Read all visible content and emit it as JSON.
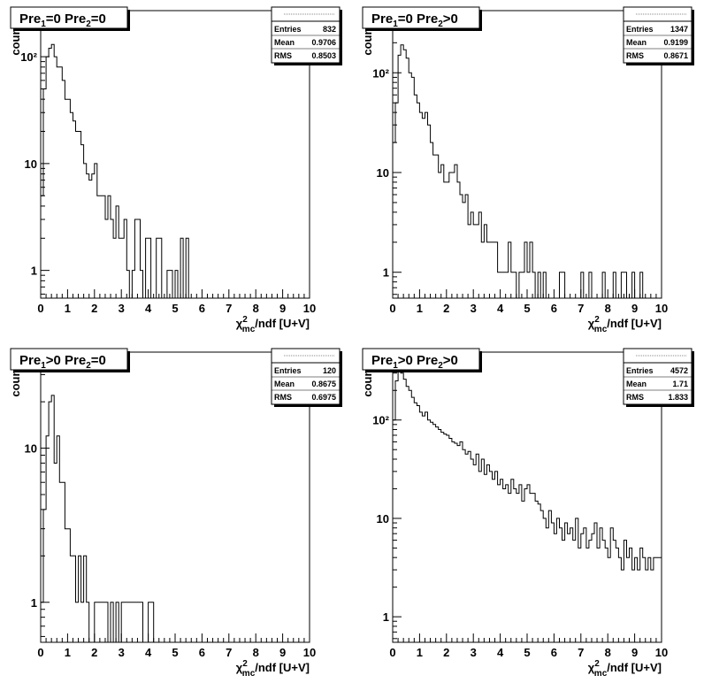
{
  "chart_data": [
    {
      "type": "histogram",
      "title": "Pre1=0  Pre2=0",
      "stats": {
        "Entries": "832",
        "Mean": "0.9706",
        "RMS": "0.8503"
      },
      "xlabel": "χ2mc/ndf [U+V]",
      "ylabel": "counts",
      "xlim": [
        0,
        10
      ],
      "ylog": true,
      "ylim": [
        0.55,
        270
      ],
      "xticks": [
        "0",
        "1",
        "2",
        "3",
        "4",
        "5",
        "6",
        "7",
        "8",
        "9",
        "10"
      ],
      "yticks": [
        {
          "v": 1,
          "label": "1"
        },
        {
          "v": 10,
          "label": "10"
        },
        {
          "v": 100,
          "label": "10²"
        }
      ],
      "bin_width": 0.1,
      "values": [
        5,
        50,
        100,
        120,
        130,
        100,
        80,
        80,
        60,
        40,
        40,
        30,
        25,
        20,
        20,
        15,
        10,
        8,
        7,
        8,
        10,
        5,
        5,
        5,
        3,
        5,
        3,
        2,
        4,
        2,
        2,
        3,
        1,
        0,
        1,
        3,
        3,
        1,
        0,
        2,
        2,
        0,
        0,
        2,
        2,
        0,
        0,
        1,
        1,
        0,
        1,
        0,
        2,
        0,
        2,
        0,
        0,
        0,
        0,
        0,
        0,
        0,
        0,
        0,
        0,
        0,
        0,
        0,
        0,
        0,
        0,
        0,
        0,
        0,
        0,
        0,
        0,
        0,
        0,
        0,
        0,
        0,
        0,
        0,
        0,
        0,
        0,
        0,
        0,
        0,
        0,
        0,
        0,
        0,
        0,
        0,
        0,
        0,
        0,
        0
      ]
    },
    {
      "type": "histogram",
      "title": "Pre1=0  Pre2>0",
      "stats": {
        "Entries": "1347",
        "Mean": "0.9199",
        "RMS": "0.8671"
      },
      "xlabel": "χ2mc/ndf [U+V]",
      "ylabel": "counts",
      "xlim": [
        0,
        10
      ],
      "ylog": true,
      "ylim": [
        0.55,
        420
      ],
      "xticks": [
        "0",
        "1",
        "2",
        "3",
        "4",
        "5",
        "6",
        "7",
        "8",
        "9",
        "10"
      ],
      "yticks": [
        {
          "v": 1,
          "label": "1"
        },
        {
          "v": 10,
          "label": "10"
        },
        {
          "v": 100,
          "label": "10²"
        }
      ],
      "bin_width": 0.1,
      "values": [
        20,
        50,
        150,
        190,
        170,
        140,
        100,
        90,
        60,
        50,
        40,
        35,
        40,
        30,
        20,
        15,
        15,
        10,
        12,
        8,
        8,
        10,
        10,
        12,
        8,
        6,
        5,
        6,
        3,
        4,
        3,
        3,
        4,
        2,
        3,
        2,
        2,
        2,
        2,
        1,
        1,
        1,
        1,
        2,
        1,
        1,
        0,
        1,
        1,
        2,
        1,
        2,
        1,
        0,
        1,
        0,
        1,
        0,
        0,
        0,
        0,
        0,
        1,
        1,
        0,
        0,
        0,
        0,
        0,
        0,
        1,
        0,
        0,
        1,
        0,
        0,
        0,
        0,
        1,
        0,
        0,
        0,
        1,
        0,
        0,
        1,
        1,
        0,
        0,
        1,
        0,
        0,
        1,
        0,
        0,
        0,
        0,
        0,
        0,
        0
      ]
    },
    {
      "type": "histogram",
      "title": "Pre1>0  Pre2=0",
      "stats": {
        "Entries": "120",
        "Mean": "0.8675",
        "RMS": "0.6975"
      },
      "xlabel": "χ2mc/ndf [U+V]",
      "ylabel": "counts",
      "xlim": [
        0,
        10
      ],
      "ylog": true,
      "ylim": [
        0.55,
        42
      ],
      "xticks": [
        "0",
        "1",
        "2",
        "3",
        "4",
        "5",
        "6",
        "7",
        "8",
        "9",
        "10"
      ],
      "yticks": [
        {
          "v": 1,
          "label": "1"
        },
        {
          "v": 10,
          "label": "10"
        }
      ],
      "bin_width": 0.1,
      "values": [
        1,
        4,
        12,
        20,
        22,
        8,
        12,
        6,
        6,
        3,
        3,
        2,
        2,
        1,
        2,
        1,
        2,
        1,
        0,
        0,
        1,
        1,
        1,
        1,
        1,
        0,
        1,
        0,
        1,
        0,
        1,
        1,
        1,
        1,
        1,
        1,
        1,
        1,
        0,
        0,
        1,
        1,
        0,
        0,
        0,
        0,
        0,
        0,
        0,
        0,
        0,
        0,
        0,
        0,
        0,
        0,
        0,
        0,
        0,
        0,
        0,
        0,
        0,
        0,
        0,
        0,
        0,
        0,
        0,
        0,
        0,
        0,
        0,
        0,
        0,
        0,
        0,
        0,
        0,
        0,
        0,
        0,
        0,
        0,
        0,
        0,
        0,
        0,
        0,
        0,
        0,
        0,
        0,
        0,
        0,
        0,
        0,
        0,
        0,
        0
      ]
    },
    {
      "type": "histogram",
      "title": "Pre1>0  Pre2>0",
      "stats": {
        "Entries": "4572",
        "Mean": "1.71",
        "RMS": "1.833"
      },
      "xlabel": "χ2mc/ndf [U+V]",
      "ylabel": "counts",
      "xlim": [
        0,
        10
      ],
      "ylog": true,
      "ylim": [
        0.55,
        490
      ],
      "xticks": [
        "0",
        "1",
        "2",
        "3",
        "4",
        "5",
        "6",
        "7",
        "8",
        "9",
        "10"
      ],
      "yticks": [
        {
          "v": 1,
          "label": "1"
        },
        {
          "v": 10,
          "label": "10"
        },
        {
          "v": 100,
          "label": "10²"
        }
      ],
      "bin_width": 0.1,
      "values": [
        100,
        250,
        350,
        300,
        260,
        220,
        200,
        170,
        150,
        140,
        120,
        110,
        120,
        100,
        95,
        90,
        85,
        80,
        75,
        72,
        70,
        65,
        60,
        58,
        55,
        60,
        50,
        45,
        48,
        40,
        35,
        45,
        30,
        40,
        28,
        35,
        30,
        25,
        30,
        22,
        25,
        20,
        22,
        18,
        25,
        20,
        18,
        22,
        15,
        20,
        22,
        18,
        18,
        15,
        14,
        12,
        10,
        8,
        12,
        9,
        7,
        10,
        8,
        6,
        9,
        7,
        8,
        6,
        10,
        5,
        7,
        8,
        5,
        6,
        7,
        9,
        5,
        8,
        6,
        5,
        4,
        8,
        6,
        5,
        4,
        3,
        6,
        4,
        5,
        3,
        4,
        3,
        5,
        4,
        3,
        4,
        3,
        4,
        4,
        4
      ]
    }
  ]
}
